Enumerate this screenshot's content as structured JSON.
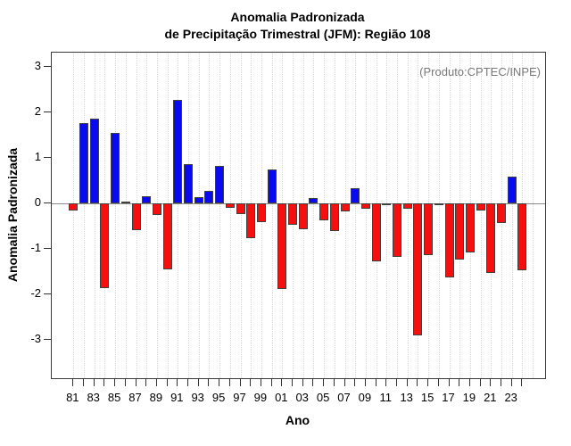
{
  "title": {
    "line1": "Anomalia Padronizada",
    "line2": "de Precipitação Trimestral (JFM): Região 108"
  },
  "annotation": "(Produto:CPTEC/INPE)",
  "axes": {
    "x_label": "Ano",
    "y_label": "Anomalia Padronizada"
  },
  "chart_data": {
    "type": "bar",
    "title": "Anomalia Padronizada de Precipitação Trimestral (JFM): Região 108",
    "xlabel": "Ano",
    "ylabel": "Anomalia Padronizada",
    "x": [
      1981,
      1982,
      1983,
      1984,
      1985,
      1986,
      1987,
      1988,
      1989,
      1990,
      1991,
      1992,
      1993,
      1994,
      1995,
      1996,
      1997,
      1998,
      1999,
      2000,
      2001,
      2002,
      2003,
      2004,
      2005,
      2006,
      2007,
      2008,
      2009,
      2010,
      2011,
      2012,
      2013,
      2014,
      2015,
      2016,
      2017,
      2018,
      2019,
      2020,
      2021,
      2022,
      2023,
      2024
    ],
    "values": [
      -0.15,
      1.77,
      1.86,
      -1.86,
      1.54,
      0.04,
      -0.59,
      0.15,
      -0.25,
      -1.45,
      2.28,
      0.86,
      0.14,
      0.28,
      0.83,
      -0.1,
      -0.24,
      -0.76,
      -0.41,
      0.75,
      -1.88,
      -0.48,
      -0.57,
      0.12,
      -0.37,
      -0.61,
      -0.18,
      0.33,
      -0.12,
      -1.27,
      -0.03,
      -1.18,
      -0.12,
      -2.9,
      -1.14,
      -0.03,
      -1.63,
      -1.24,
      -1.07,
      -0.15,
      -1.53,
      -0.44,
      0.59,
      -1.47
    ],
    "x_tick_labels": [
      "81",
      "83",
      "85",
      "87",
      "89",
      "91",
      "93",
      "95",
      "97",
      "99",
      "01",
      "03",
      "05",
      "07",
      "09",
      "11",
      "13",
      "15",
      "17",
      "19",
      "21",
      "23"
    ],
    "y_ticks": [
      3,
      2,
      1,
      0,
      -1,
      -2,
      -3
    ],
    "ylim": [
      -3.84,
      3.31
    ],
    "grid": "vertical-dotted-yearly",
    "legend": "none",
    "positive_color": "#0a0af0",
    "negative_color": "#f50f0f",
    "bar_border_color": "#404040",
    "zero_line_color": "#8c8c8c",
    "annotation_color": "#7a7a7a"
  }
}
